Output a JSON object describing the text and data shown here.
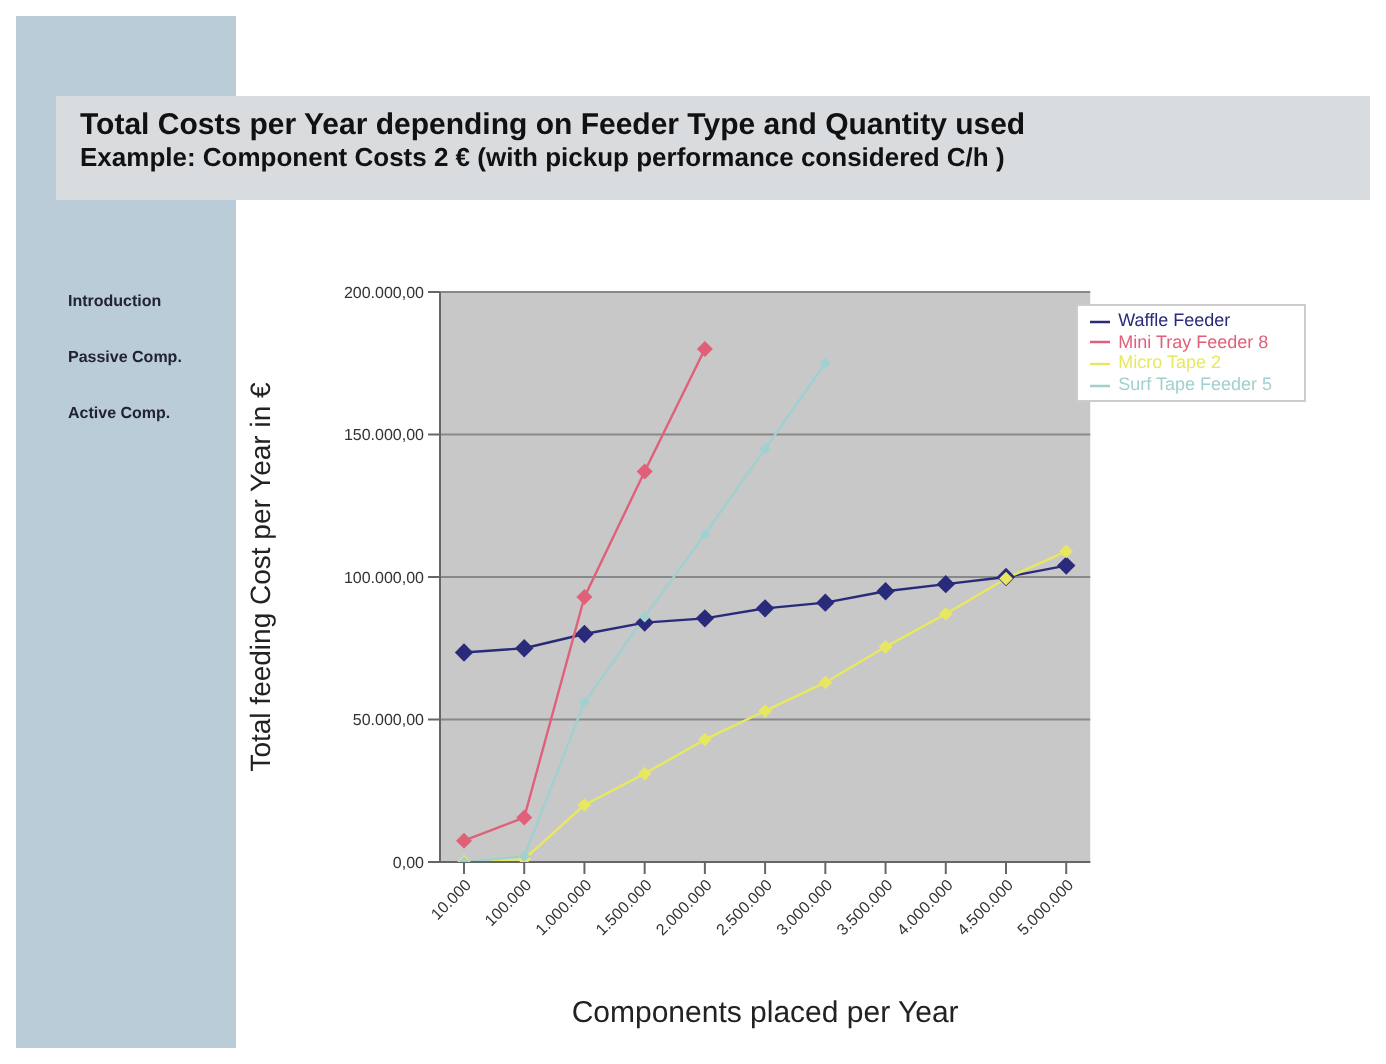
{
  "chart_data": {
    "type": "line",
    "title": "Total Costs per Year depending on Feeder Type and Quantity used",
    "subtitle": "Example: Component Costs 2 € (with pickup performance considered C/h )",
    "xlabel": "Components placed per Year",
    "ylabel": "Total feeding Cost per Year in €",
    "annotations": [
      "Introduction",
      "Passive Comp.",
      "Active Comp."
    ],
    "categories": [
      "10.000",
      "100.000",
      "1.000.000",
      "1.500.000",
      "2.000.000",
      "2.500.000",
      "3.000.000",
      "3.500.000",
      "4.000.000",
      "4.500.000",
      "5.000.000"
    ],
    "series": [
      {
        "name": "Waffle Feeder",
        "color": "#2a2a7a",
        "values": [
          73500,
          75000,
          80000,
          84000,
          85500,
          89000,
          91000,
          95000,
          97500,
          100000,
          104000
        ]
      },
      {
        "name": "Mini Tray Feeder 8",
        "color": "#e0607a",
        "values": [
          7500,
          15600,
          93000,
          137000,
          180000,
          null,
          null,
          null,
          null,
          null,
          null
        ]
      },
      {
        "name": "Micro Tape 2",
        "color": "#e8e860",
        "values": [
          0,
          1000,
          20000,
          31000,
          43000,
          53000,
          63000,
          75500,
          87000,
          99500,
          109000
        ]
      },
      {
        "name": "Surf Tape Feeder 5",
        "color": "#a0d0d0",
        "values": [
          0,
          2000,
          56000,
          86000,
          115000,
          145000,
          175000,
          null,
          null,
          null,
          null
        ]
      }
    ],
    "ylim": [
      0,
      200000
    ],
    "yticks": [
      {
        "value": 0,
        "label": "0,00"
      },
      {
        "value": 50000,
        "label": "50.000,00"
      },
      {
        "value": 100000,
        "label": "100.000,00"
      },
      {
        "value": 150000,
        "label": "150.000,00"
      },
      {
        "value": 200000,
        "label": "200.000,00"
      }
    ],
    "grid": "y",
    "legend": "top right",
    "marker": "diamond",
    "line_style": "solid"
  }
}
